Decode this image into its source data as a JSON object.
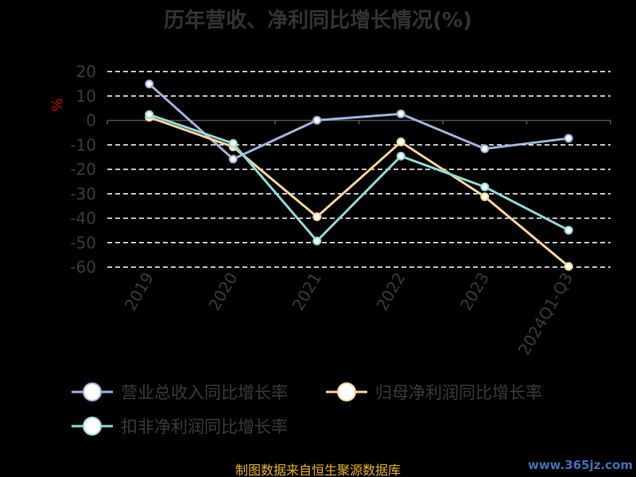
{
  "chart_data": {
    "type": "line",
    "title": "历年营收、净利同比增长情况(%)",
    "ylabel": "%",
    "ylim": [
      -60,
      20
    ],
    "yticks": [
      20,
      10,
      0,
      -10,
      -20,
      -30,
      -40,
      -50,
      -60
    ],
    "categories": [
      "2019",
      "2020",
      "2021",
      "2022",
      "2023",
      "2024Q1-Q3"
    ],
    "grid": true,
    "legend_position": "bottom",
    "series": [
      {
        "name": "营业总收入同比增长率",
        "color": "#9eb3d8",
        "values": [
          14.9,
          -15.8,
          0.1,
          2.7,
          -11.6,
          -7.3
        ]
      },
      {
        "name": "归母净利润同比增长率",
        "color": "#f7d49a",
        "values": [
          1.3,
          -10.8,
          -39.4,
          -8.8,
          -31.2,
          -59.7
        ]
      },
      {
        "name": "扣非净利润同比增长率",
        "color": "#8fd9d4",
        "values": [
          2.4,
          -9.4,
          -49.3,
          -14.6,
          -27.2,
          -44.9
        ]
      }
    ]
  },
  "footer": {
    "source": "制图数据来自恒生聚源数据库",
    "watermark": "www.365jz.com"
  }
}
